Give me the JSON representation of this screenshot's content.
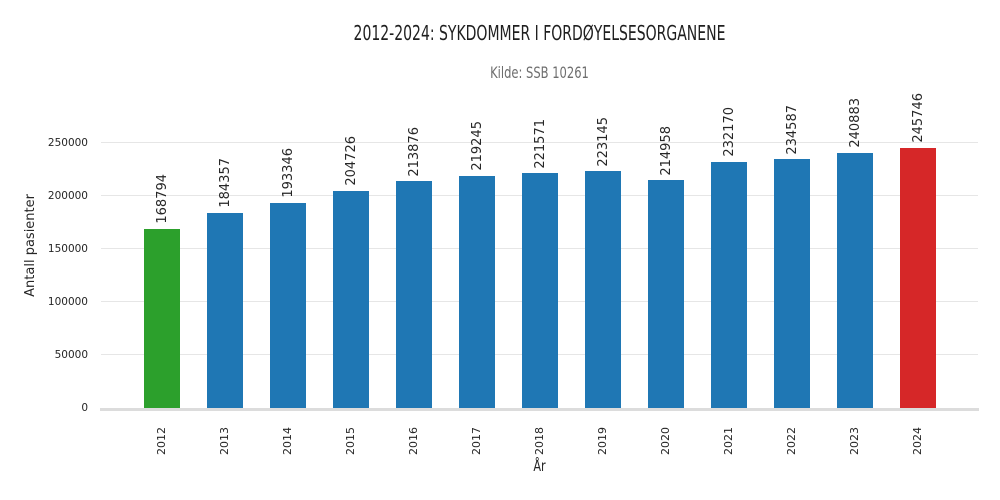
{
  "chart_data": {
    "type": "bar",
    "title": "2012-2024: SYKDOMMER I FORDØYELSESORGANENE",
    "subtitle": "Kilde: SSB 10261",
    "xlabel": "År",
    "ylabel": "Antall pasienter",
    "categories": [
      "2012",
      "2013",
      "2014",
      "2015",
      "2016",
      "2017",
      "2018",
      "2019",
      "2020",
      "2021",
      "2022",
      "2023",
      "2024"
    ],
    "values": [
      168794,
      184357,
      193346,
      204726,
      213876,
      219245,
      221571,
      223145,
      214958,
      232170,
      234587,
      240883,
      245746
    ],
    "bar_colors": [
      "#2ca02c",
      "#1f77b4",
      "#1f77b4",
      "#1f77b4",
      "#1f77b4",
      "#1f77b4",
      "#1f77b4",
      "#1f77b4",
      "#1f77b4",
      "#1f77b4",
      "#1f77b4",
      "#1f77b4",
      "#d62728"
    ],
    "yticks": [
      0,
      50000,
      100000,
      150000,
      200000,
      250000
    ],
    "ylim": [
      0,
      295000
    ],
    "grid": "horizontal",
    "legend": "none",
    "colors": {
      "bar_default": "#1f77b4",
      "bar_first": "#2ca02c",
      "bar_last": "#d62728",
      "grid": "#e6e6e6",
      "axis_line": "#dcdcdc",
      "text": "#262626",
      "subtitle_text": "#6e6e6e",
      "background": "#ffffff"
    }
  }
}
